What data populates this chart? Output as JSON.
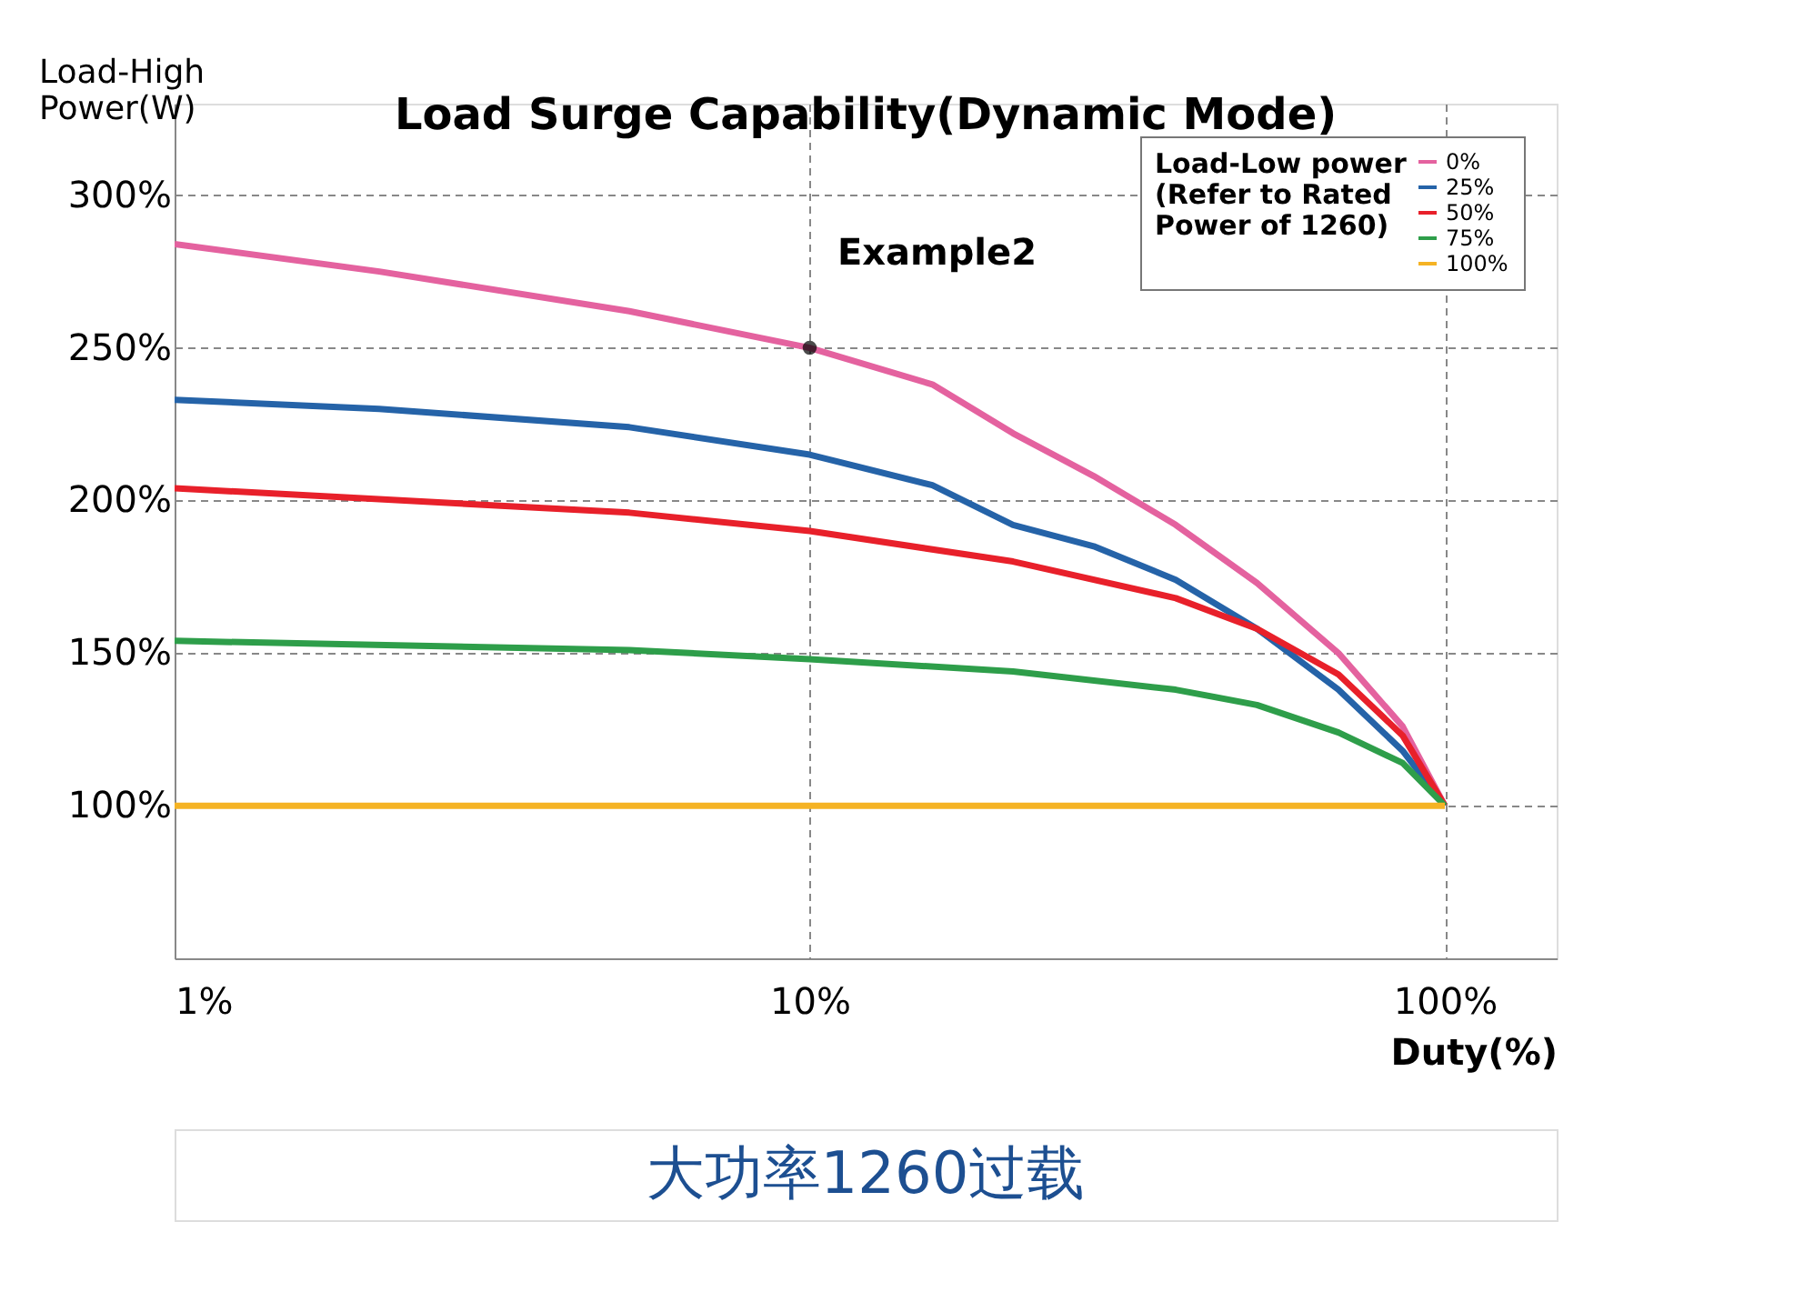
{
  "chart_data": {
    "type": "line",
    "title": "Load Surge Capability(Dynamic Mode)",
    "xlabel": "Duty(%)",
    "ylabel": "Load-High\nPower(W)",
    "legend_title": "Load-Low power\n(Refer to Rated\nPower of 1260)",
    "log": "x",
    "grid": true,
    "legend": "top right",
    "line_style": "solid",
    "marker": "none",
    "xlim": [
      1,
      150
    ],
    "ylim": [
      50,
      330
    ],
    "xticks": [
      {
        "value": 1,
        "label": "1%"
      },
      {
        "value": 10,
        "label": "10%"
      },
      {
        "value": 100,
        "label": "100%"
      }
    ],
    "yticks": [
      {
        "value": 100,
        "label": "100%"
      },
      {
        "value": 150,
        "label": "150%"
      },
      {
        "value": 200,
        "label": "200%"
      },
      {
        "value": 250,
        "label": "250%"
      },
      {
        "value": 300,
        "label": "300%"
      }
    ],
    "series": [
      {
        "name": "0%",
        "color": "#e4629f",
        "x": [
          1,
          2.1,
          5.2,
          10,
          15.6,
          20.9,
          28,
          37.7,
          50.6,
          68,
          85.8,
          100
        ],
        "values": [
          284,
          275,
          262,
          250,
          238,
          222,
          208,
          192,
          173,
          150,
          126,
          100
        ]
      },
      {
        "name": "25%",
        "color": "#2563a8",
        "x": [
          1,
          2.1,
          5.2,
          10,
          15.6,
          20.9,
          28,
          37.7,
          50.6,
          68,
          85.8,
          100
        ],
        "values": [
          233,
          230,
          224,
          215,
          205,
          192,
          185,
          174,
          158,
          138,
          118,
          100
        ]
      },
      {
        "name": "50%",
        "color": "#e8202a",
        "x": [
          1,
          5.2,
          10,
          20.9,
          37.7,
          50.6,
          68,
          85.8,
          100
        ],
        "values": [
          204,
          196,
          190,
          180,
          168,
          158,
          143,
          123,
          100
        ]
      },
      {
        "name": "75%",
        "color": "#2e9e4a",
        "x": [
          1,
          5.2,
          10,
          20.9,
          37.7,
          50.6,
          68,
          85.8,
          100
        ],
        "values": [
          154,
          151,
          148,
          144,
          138,
          133,
          124,
          114,
          100
        ]
      },
      {
        "name": "100%",
        "color": "#f5b324",
        "x": [
          1,
          100
        ],
        "values": [
          100,
          100
        ]
      }
    ],
    "annotations": [
      {
        "text": "Example2",
        "x": 10,
        "y": 250
      },
      "大功率1260过载"
    ]
  }
}
